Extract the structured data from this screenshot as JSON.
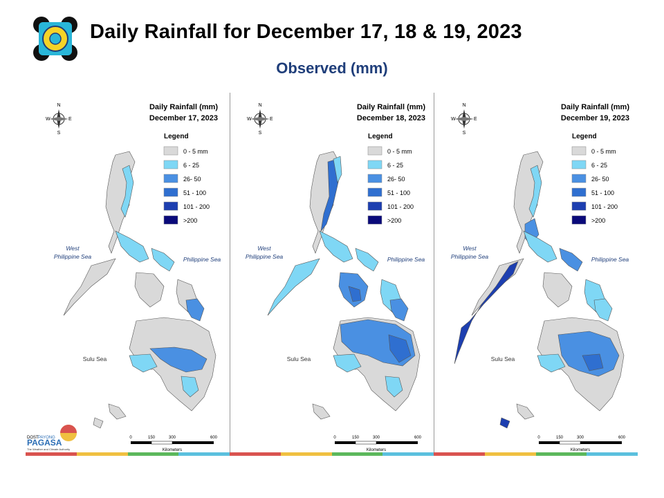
{
  "header": {
    "title": "Daily Rainfall for December 17, 18 & 19, 2023",
    "subtitle": "Observed (mm)"
  },
  "panels": [
    {
      "map_title_line1": "Daily Rainfall (mm)",
      "map_title_line2": "December 17, 2023"
    },
    {
      "map_title_line1": "Daily Rainfall (mm)",
      "map_title_line2": "December 18, 2023"
    },
    {
      "map_title_line1": "Daily Rainfall (mm)",
      "map_title_line2": "December 19, 2023"
    }
  ],
  "legend": {
    "title": "Legend",
    "items": [
      {
        "label": "0 - 5 mm",
        "color": "#d9d9d9"
      },
      {
        "label": "6 - 25",
        "color": "#7fd7f5"
      },
      {
        "label": "26- 50",
        "color": "#4a90e2"
      },
      {
        "label": "51 - 100",
        "color": "#2f6fd0"
      },
      {
        "label": "101 - 200",
        "color": "#1d3fb0"
      },
      {
        "label": ">200",
        "color": "#0a0a7a"
      }
    ]
  },
  "map_labels": {
    "west_sea_line1": "West",
    "west_sea_line2": "Philippine Sea",
    "east_sea": "Philippine Sea",
    "sulu_sea": "Sulu Sea"
  },
  "compass": {
    "n": "N",
    "s": "S",
    "e": "E",
    "w": "W"
  },
  "scale_bar": {
    "ticks": [
      "0",
      "150",
      "300",
      "600"
    ],
    "unit": "Kilometers"
  },
  "branding": {
    "dost": "DOST",
    "payong": "PAYONG",
    "pagasa": "PAGASA",
    "tagline": "The Weather and Climate Authority"
  },
  "strip_colors": [
    "#d9534f",
    "#f0c040",
    "#5cb85c",
    "#5bc0de"
  ]
}
